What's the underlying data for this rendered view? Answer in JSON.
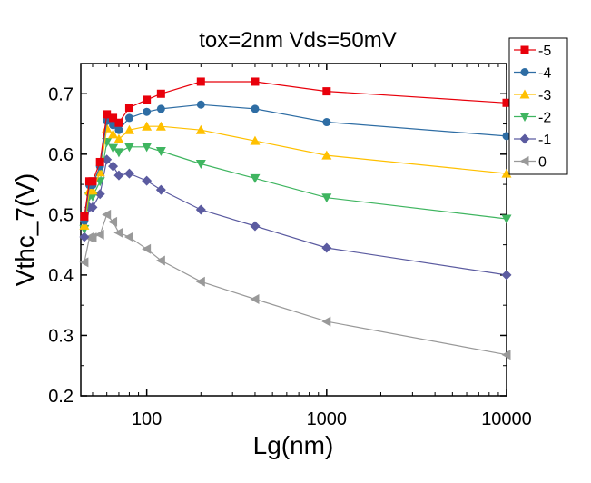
{
  "chart_data": {
    "type": "line",
    "title": "tox=2nm  Vds=50mV",
    "xlabel": "Lg(nm)",
    "ylabel": "Vthc_7(V)",
    "xscale": "log",
    "xlim": [
      43,
      10000
    ],
    "ylim": [
      0.2,
      0.75
    ],
    "x_ticks": [
      100,
      1000,
      10000
    ],
    "x_tick_labels": [
      "100",
      "1000",
      "10000"
    ],
    "y_ticks": [
      0.2,
      0.3,
      0.4,
      0.5,
      0.6,
      0.7
    ],
    "y_tick_labels": [
      "0.2",
      "0.3",
      "0.4",
      "0.5",
      "0.6",
      "0.7"
    ],
    "grid": false,
    "legend_position": "top-right",
    "x": [
      45,
      48,
      50,
      55,
      60,
      65,
      70,
      80,
      100,
      120,
      200,
      400,
      1000,
      10000
    ],
    "series": [
      {
        "name": "-5",
        "color": "#e8000b",
        "marker": "square",
        "values": [
          0.497,
          0.555,
          0.555,
          0.587,
          0.666,
          0.66,
          0.652,
          0.677,
          0.69,
          0.7,
          0.72,
          0.72,
          0.704,
          0.685
        ]
      },
      {
        "name": "-4",
        "color": "#2e6da4",
        "marker": "circle",
        "values": [
          0.49,
          0.549,
          0.549,
          0.58,
          0.655,
          0.648,
          0.64,
          0.66,
          0.67,
          0.675,
          0.682,
          0.675,
          0.653,
          0.63
        ]
      },
      {
        "name": "-3",
        "color": "#ffc000",
        "marker": "triangle-up",
        "values": [
          0.482,
          0.54,
          0.54,
          0.57,
          0.643,
          0.633,
          0.625,
          0.64,
          0.646,
          0.646,
          0.64,
          0.622,
          0.598,
          0.568
        ]
      },
      {
        "name": "-2",
        "color": "#3fb560",
        "marker": "triangle-down",
        "values": [
          0.476,
          0.53,
          0.53,
          0.555,
          0.62,
          0.61,
          0.603,
          0.612,
          0.612,
          0.605,
          0.584,
          0.56,
          0.528,
          0.493
        ]
      },
      {
        "name": "-1",
        "color": "#5b5ba0",
        "marker": "diamond",
        "values": [
          0.463,
          0.512,
          0.512,
          0.534,
          0.591,
          0.58,
          0.565,
          0.568,
          0.556,
          0.541,
          0.508,
          0.481,
          0.445,
          0.4
        ]
      },
      {
        "name": "0",
        "color": "#999999",
        "marker": "triangle-left",
        "values": [
          0.421,
          0.462,
          0.462,
          0.467,
          0.5,
          0.488,
          0.47,
          0.463,
          0.443,
          0.424,
          0.389,
          0.36,
          0.323,
          0.268
        ]
      }
    ]
  }
}
